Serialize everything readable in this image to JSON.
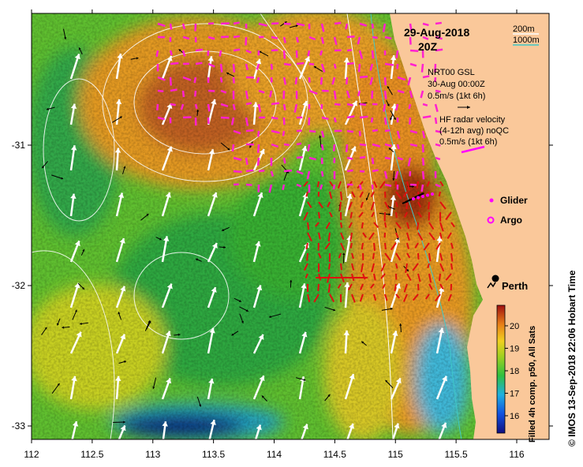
{
  "title": {
    "date": "29-Aug-2018",
    "time": "20Z"
  },
  "isobath_legend": {
    "shallow_label": "200m",
    "deep_label": "1000m",
    "shallow_color": "#ffffff",
    "deep_color": "#40c8c8"
  },
  "gsl_legend": {
    "line1": "NRT00 GSL",
    "line2": "30-Aug 00:00Z",
    "scale": "0.5m/s (1kt 6h)"
  },
  "hf_legend": {
    "line1": "HF radar velocity",
    "line2": "(4-12h avg) noQC",
    "scale": "0.5m/s (1kt 6h)"
  },
  "platforms": {
    "glider_label": "Glider",
    "argo_label": "Argo",
    "color": "#ff00ff"
  },
  "city": {
    "name": "Perth"
  },
  "colorbar": {
    "label": "Filled 4h comp. p50, All Sats",
    "ticks": [
      "16",
      "17",
      "18",
      "19",
      "20"
    ]
  },
  "credit": "© IMOS 13-Sep-2018 22:06 Hobart Time",
  "axes": {
    "x_ticks": [
      "112",
      "112.5",
      "113",
      "113.5",
      "114",
      "114.5",
      "115",
      "115.5",
      "116"
    ],
    "y_ticks": [
      "-31",
      "-32",
      "-33"
    ]
  },
  "colors": {
    "land": "#fac89a",
    "warm": "#e8901c",
    "green": "#50b828",
    "cold": "#1020a0",
    "gsl_vector": "#000000",
    "hf_vector": "#e01010",
    "model_vector": "#ffffff"
  }
}
